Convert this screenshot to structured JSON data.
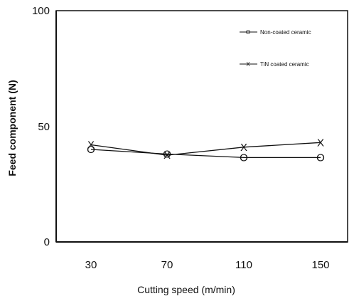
{
  "chart_data": {
    "type": "line",
    "xlabel": "Cutting speed (m/min)",
    "ylabel": "Feed component (N)",
    "ylim": [
      0,
      100
    ],
    "yticks": [
      "0",
      "50",
      "100"
    ],
    "x": [
      "30",
      "70",
      "110",
      "150"
    ],
    "grid": false,
    "legend_position": "top-right",
    "series": [
      {
        "name": "Non-coated ceramic",
        "marker": "O",
        "values": [
          40,
          38,
          36.5,
          36.5
        ]
      },
      {
        "name": "TiN coated ceramic",
        "marker": "X",
        "values": [
          42,
          37.5,
          41,
          43
        ]
      }
    ]
  }
}
